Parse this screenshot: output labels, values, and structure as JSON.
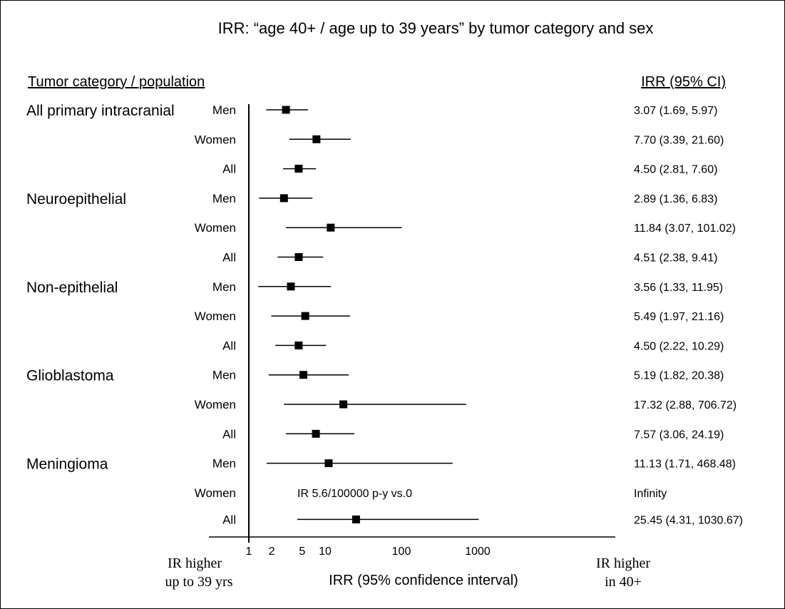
{
  "chart_data": {
    "type": "forest",
    "title": "IRR: “age 40+ / age up to 39 years” by tumor category and sex",
    "left_header": "Tumor category / population",
    "right_header": "IRR (95% CI)",
    "xlabel": "IRR (95% confidence interval)",
    "x_scale": "log",
    "xlim": [
      1,
      3000
    ],
    "x_ticks": [
      1,
      2,
      5,
      10,
      100,
      1000
    ],
    "x_tick_labels": [
      "1",
      "2",
      "5",
      "10",
      "100",
      "1000"
    ],
    "left_axis_note": [
      "IR higher",
      "up to 39 yrs"
    ],
    "right_axis_note": [
      "IR higher",
      "in 40+"
    ],
    "groups": [
      {
        "category": "All primary intracranial",
        "rows": [
          {
            "population": "Men",
            "estimate": 3.07,
            "lower": 1.69,
            "upper": 5.97,
            "label": "3.07 (1.69, 5.97)"
          },
          {
            "population": "Women",
            "estimate": 7.7,
            "lower": 3.39,
            "upper": 21.6,
            "label": "7.70 (3.39, 21.60)"
          },
          {
            "population": "All",
            "estimate": 4.5,
            "lower": 2.81,
            "upper": 7.6,
            "label": "4.50 (2.81, 7.60)"
          }
        ]
      },
      {
        "category": "Neuroepithelial",
        "rows": [
          {
            "population": "Men",
            "estimate": 2.89,
            "lower": 1.36,
            "upper": 6.83,
            "label": "2.89 (1.36, 6.83)"
          },
          {
            "population": "Women",
            "estimate": 11.84,
            "lower": 3.07,
            "upper": 101.02,
            "label": "11.84 (3.07, 101.02)"
          },
          {
            "population": "All",
            "estimate": 4.51,
            "lower": 2.38,
            "upper": 9.41,
            "label": "4.51 (2.38, 9.41)"
          }
        ]
      },
      {
        "category": "Non-epithelial",
        "rows": [
          {
            "population": "Men",
            "estimate": 3.56,
            "lower": 1.33,
            "upper": 11.95,
            "label": "3.56 (1.33, 11.95)"
          },
          {
            "population": "Women",
            "estimate": 5.49,
            "lower": 1.97,
            "upper": 21.16,
            "label": "5.49 (1.97, 21.16)"
          },
          {
            "population": "All",
            "estimate": 4.5,
            "lower": 2.22,
            "upper": 10.29,
            "label": "4.50 (2.22, 10.29)"
          }
        ]
      },
      {
        "category": "Glioblastoma",
        "rows": [
          {
            "population": "Men",
            "estimate": 5.19,
            "lower": 1.82,
            "upper": 20.38,
            "label": "5.19 (1.82, 20.38)"
          },
          {
            "population": "Women",
            "estimate": 17.32,
            "lower": 2.88,
            "upper": 706.72,
            "label": "17.32 (2.88, 706.72)"
          },
          {
            "population": "All",
            "estimate": 7.57,
            "lower": 3.06,
            "upper": 24.19,
            "label": "7.57 (3.06, 24.19)"
          }
        ]
      },
      {
        "category": "Meningioma",
        "rows": [
          {
            "population": "Men",
            "estimate": 11.13,
            "lower": 1.71,
            "upper": 468.48,
            "label": "11.13 (1.71, 468.48)"
          },
          {
            "population": "Women",
            "estimate": null,
            "lower": null,
            "upper": null,
            "label": "Infinity",
            "note": "IR 5.6/100000 p-y vs.0"
          },
          {
            "population": "All",
            "estimate": 25.45,
            "lower": 4.31,
            "upper": 1030.67,
            "label": "25.45 (4.31, 1030.67)"
          }
        ]
      }
    ]
  }
}
